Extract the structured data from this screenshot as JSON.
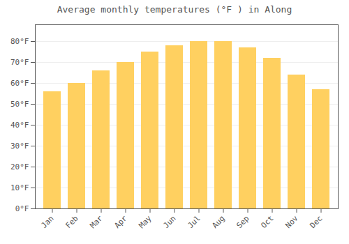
{
  "chart_data": {
    "type": "bar",
    "title": "Average monthly temperatures (°F ) in Along",
    "categories": [
      "Jan",
      "Feb",
      "Mar",
      "Apr",
      "May",
      "Jun",
      "Jul",
      "Aug",
      "Sep",
      "Oct",
      "Nov",
      "Dec"
    ],
    "values": [
      56,
      60,
      66,
      70,
      75,
      78,
      80,
      80,
      77,
      72,
      64,
      57
    ],
    "color": "#FFD060",
    "ylim": [
      0,
      88
    ],
    "yticks": [
      {
        "value": 0,
        "label": "0°F"
      },
      {
        "value": 10,
        "label": "10°F"
      },
      {
        "value": 20,
        "label": "20°F"
      },
      {
        "value": 30,
        "label": "30°F"
      },
      {
        "value": 40,
        "label": "40°F"
      },
      {
        "value": 50,
        "label": "50°F"
      },
      {
        "value": 60,
        "label": "60°F"
      },
      {
        "value": 70,
        "label": "70°F"
      },
      {
        "value": 80,
        "label": "80°F"
      }
    ],
    "grid": true
  }
}
